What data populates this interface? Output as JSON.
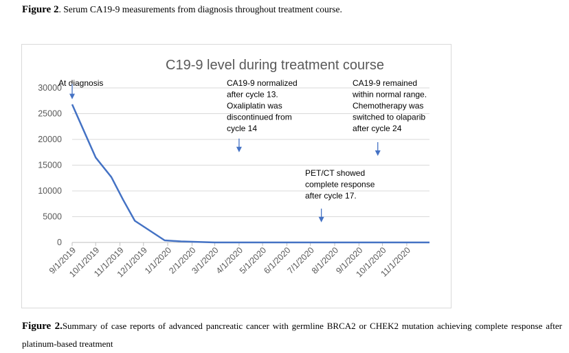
{
  "captions": {
    "top_label": "Figure 2",
    "top_text": ". Serum CA19-9 measurements from diagnosis throughout treatment course.",
    "bottom_label": "Figure 2.",
    "bottom_text": "Summary of case reports of advanced pancreatic cancer with germline BRCA2 or CHEK2 mutation achieving complete response after platinum-based treatment"
  },
  "chart_data": {
    "type": "line",
    "title": "C19-9 level during treatment course",
    "xlabel": "",
    "ylabel": "",
    "x_ticks": [
      "9/1/2019",
      "10/1/2019",
      "11/1/2019",
      "12/1/2019",
      "1/1/2020",
      "2/1/2020",
      "3/1/2020",
      "4/1/2020",
      "5/1/2020",
      "6/1/2020",
      "7/1/2020",
      "8/1/2020",
      "9/1/2020",
      "10/1/2020",
      "11/1/2020"
    ],
    "y_ticks": [
      0,
      5000,
      10000,
      15000,
      20000,
      25000,
      30000
    ],
    "ylim": [
      0,
      30000
    ],
    "xlim": [
      "9/1/2019",
      "11/30/2020"
    ],
    "grid": true,
    "line_color": "#4472c4",
    "series": [
      {
        "x": [
          "9/1/2019",
          "10/1/2019",
          "10/21/2019",
          "11/5/2019",
          "11/20/2019",
          "12/28/2019",
          "1/18/2020",
          "3/1/2020",
          "11/30/2020"
        ],
        "y": [
          26800,
          16500,
          12700,
          8300,
          4200,
          400,
          200,
          0,
          0
        ]
      }
    ],
    "annotations": [
      {
        "id": "at-diagnosis",
        "lines": [
          "At diagnosis"
        ],
        "arrow_at": [
          "9/1/2019",
          27800
        ]
      },
      {
        "id": "normalized",
        "lines": [
          "CA19-9 normalized",
          "after cycle 13.",
          "Oxaliplatin was",
          "discontinued from",
          "cycle 14"
        ],
        "arrow_at": [
          "4/1/2020",
          17500
        ]
      },
      {
        "id": "petct",
        "lines": [
          "PET/CT showed",
          "complete response",
          "after cycle 17."
        ],
        "arrow_at": [
          "7/15/2020",
          3900
        ]
      },
      {
        "id": "olaparib",
        "lines": [
          "CA19-9 remained",
          "within normal range.",
          "Chemotherapy was",
          "switched to olaparib",
          "after cycle 24"
        ],
        "arrow_at": [
          "9/25/2020",
          16800
        ]
      }
    ]
  }
}
